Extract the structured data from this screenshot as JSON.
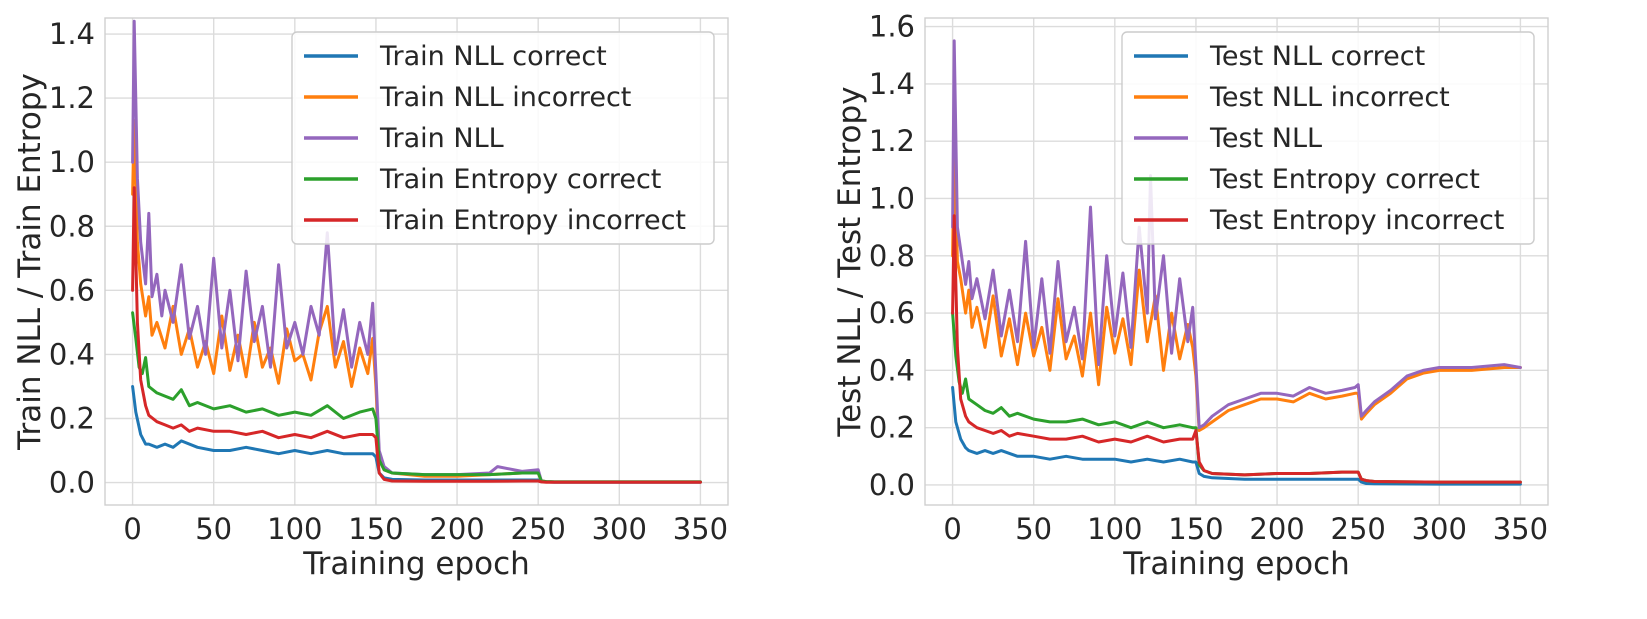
{
  "chart_data": [
    {
      "type": "line",
      "xlabel": "Training epoch",
      "ylabel": "Train NLL / Train Entropy",
      "xlim": [
        -17,
        367
      ],
      "ylim": [
        -0.07,
        1.45
      ],
      "xticks": [
        "0",
        "50",
        "100",
        "150",
        "200",
        "250",
        "300",
        "350"
      ],
      "yticks": [
        "0.0",
        "0.2",
        "0.4",
        "0.6",
        "0.8",
        "1.0",
        "1.2",
        "1.4"
      ],
      "grid": true,
      "legend_position": "top-right",
      "series": [
        {
          "name": "Train NLL correct",
          "color": "#1f77b4",
          "x": [
            0,
            2,
            5,
            8,
            10,
            15,
            20,
            25,
            30,
            40,
            50,
            60,
            70,
            80,
            90,
            100,
            110,
            120,
            130,
            140,
            148,
            150,
            152,
            155,
            160,
            180,
            200,
            220,
            240,
            250,
            252,
            255,
            260,
            300,
            350
          ],
          "y": [
            0.3,
            0.22,
            0.15,
            0.12,
            0.12,
            0.11,
            0.12,
            0.11,
            0.13,
            0.11,
            0.1,
            0.1,
            0.11,
            0.1,
            0.09,
            0.1,
            0.09,
            0.1,
            0.09,
            0.09,
            0.09,
            0.08,
            0.03,
            0.015,
            0.01,
            0.008,
            0.008,
            0.008,
            0.008,
            0.008,
            0.003,
            0.002,
            0.001,
            0.001,
            0.001
          ]
        },
        {
          "name": "Train NLL incorrect",
          "color": "#ff7f0e",
          "x": [
            0,
            1,
            3,
            5,
            8,
            10,
            12,
            15,
            20,
            25,
            30,
            35,
            40,
            45,
            50,
            55,
            60,
            65,
            70,
            75,
            80,
            85,
            90,
            95,
            100,
            105,
            110,
            115,
            120,
            125,
            130,
            135,
            140,
            145,
            148,
            150,
            152,
            155,
            160,
            180,
            200,
            220,
            240,
            250,
            252,
            255,
            260,
            300,
            350
          ],
          "y": [
            0.9,
            1.13,
            0.75,
            0.62,
            0.52,
            0.58,
            0.46,
            0.5,
            0.42,
            0.55,
            0.4,
            0.48,
            0.36,
            0.44,
            0.34,
            0.52,
            0.35,
            0.46,
            0.33,
            0.5,
            0.36,
            0.42,
            0.31,
            0.48,
            0.38,
            0.4,
            0.32,
            0.47,
            0.55,
            0.36,
            0.44,
            0.3,
            0.42,
            0.34,
            0.45,
            0.3,
            0.08,
            0.04,
            0.03,
            0.02,
            0.02,
            0.025,
            0.03,
            0.03,
            0.005,
            0.003,
            0.002,
            0.002,
            0.002
          ]
        },
        {
          "name": "Train NLL",
          "color": "#9467bd",
          "x": [
            0,
            1,
            3,
            5,
            8,
            10,
            12,
            15,
            18,
            20,
            25,
            30,
            35,
            40,
            45,
            50,
            55,
            60,
            65,
            70,
            75,
            80,
            85,
            90,
            95,
            100,
            105,
            110,
            115,
            120,
            125,
            130,
            135,
            140,
            145,
            148,
            150,
            152,
            155,
            160,
            180,
            200,
            220,
            225,
            240,
            250,
            252,
            255,
            260,
            300,
            350
          ],
          "y": [
            1.0,
            1.44,
            0.95,
            0.75,
            0.62,
            0.84,
            0.58,
            0.65,
            0.52,
            0.6,
            0.5,
            0.68,
            0.45,
            0.55,
            0.4,
            0.7,
            0.42,
            0.6,
            0.38,
            0.66,
            0.44,
            0.55,
            0.36,
            0.68,
            0.42,
            0.5,
            0.4,
            0.55,
            0.46,
            0.78,
            0.4,
            0.54,
            0.36,
            0.5,
            0.4,
            0.56,
            0.34,
            0.1,
            0.05,
            0.03,
            0.025,
            0.025,
            0.03,
            0.05,
            0.035,
            0.04,
            0.005,
            0.003,
            0.002,
            0.002,
            0.002
          ]
        },
        {
          "name": "Train Entropy correct",
          "color": "#2ca02c",
          "x": [
            0,
            2,
            4,
            6,
            8,
            10,
            15,
            20,
            25,
            30,
            35,
            40,
            50,
            60,
            70,
            80,
            90,
            100,
            110,
            120,
            130,
            140,
            148,
            150,
            152,
            155,
            160,
            180,
            200,
            220,
            240,
            250,
            252,
            255,
            260,
            300,
            350
          ],
          "y": [
            0.53,
            0.45,
            0.36,
            0.34,
            0.39,
            0.3,
            0.28,
            0.27,
            0.26,
            0.29,
            0.24,
            0.25,
            0.23,
            0.24,
            0.22,
            0.23,
            0.21,
            0.22,
            0.21,
            0.24,
            0.2,
            0.22,
            0.23,
            0.2,
            0.07,
            0.04,
            0.03,
            0.025,
            0.025,
            0.025,
            0.03,
            0.03,
            0.005,
            0.003,
            0.002,
            0.002,
            0.002
          ]
        },
        {
          "name": "Train Entropy incorrect",
          "color": "#d62728",
          "x": [
            0,
            1,
            3,
            5,
            8,
            10,
            15,
            20,
            25,
            30,
            35,
            40,
            50,
            60,
            70,
            80,
            90,
            100,
            110,
            120,
            130,
            140,
            148,
            150,
            152,
            155,
            160,
            180,
            200,
            220,
            240,
            250,
            252,
            255,
            260,
            300,
            350
          ],
          "y": [
            0.6,
            0.92,
            0.5,
            0.32,
            0.24,
            0.21,
            0.19,
            0.18,
            0.17,
            0.18,
            0.16,
            0.17,
            0.16,
            0.16,
            0.15,
            0.16,
            0.14,
            0.15,
            0.14,
            0.16,
            0.14,
            0.15,
            0.15,
            0.14,
            0.03,
            0.01,
            0.005,
            0.004,
            0.004,
            0.004,
            0.005,
            0.005,
            0.002,
            0.001,
            0.001,
            0.001,
            0.001
          ]
        }
      ]
    },
    {
      "type": "line",
      "xlabel": "Training epoch",
      "ylabel": "Test NLL / Test Entropy",
      "xlim": [
        -17,
        367
      ],
      "ylim": [
        -0.07,
        1.63
      ],
      "xticks": [
        "0",
        "50",
        "100",
        "150",
        "200",
        "250",
        "300",
        "350"
      ],
      "yticks": [
        "0.0",
        "0.2",
        "0.4",
        "0.6",
        "0.8",
        "1.0",
        "1.2",
        "1.4",
        "1.6"
      ],
      "grid": true,
      "legend_position": "top-right",
      "series": [
        {
          "name": "Test NLL correct",
          "color": "#1f77b4",
          "x": [
            0,
            2,
            5,
            8,
            10,
            15,
            20,
            25,
            30,
            40,
            50,
            60,
            70,
            80,
            90,
            100,
            110,
            120,
            130,
            140,
            148,
            150,
            152,
            155,
            160,
            180,
            200,
            220,
            240,
            250,
            252,
            255,
            260,
            300,
            350
          ],
          "y": [
            0.34,
            0.22,
            0.16,
            0.13,
            0.12,
            0.11,
            0.12,
            0.11,
            0.12,
            0.1,
            0.1,
            0.09,
            0.1,
            0.09,
            0.09,
            0.09,
            0.08,
            0.09,
            0.08,
            0.09,
            0.08,
            0.08,
            0.04,
            0.03,
            0.025,
            0.02,
            0.02,
            0.02,
            0.02,
            0.02,
            0.01,
            0.005,
            0.004,
            0.003,
            0.003
          ]
        },
        {
          "name": "Test NLL incorrect",
          "color": "#ff7f0e",
          "x": [
            0,
            1,
            3,
            5,
            8,
            10,
            12,
            15,
            20,
            25,
            30,
            35,
            40,
            45,
            50,
            55,
            60,
            65,
            70,
            75,
            80,
            85,
            90,
            95,
            100,
            105,
            110,
            115,
            120,
            125,
            130,
            135,
            140,
            145,
            148,
            150,
            152,
            155,
            160,
            170,
            180,
            190,
            200,
            210,
            220,
            230,
            240,
            248,
            250,
            252,
            255,
            260,
            270,
            280,
            290,
            300,
            320,
            340,
            350
          ],
          "y": [
            0.8,
            1.21,
            0.78,
            0.72,
            0.6,
            0.68,
            0.55,
            0.62,
            0.48,
            0.66,
            0.45,
            0.58,
            0.42,
            0.6,
            0.45,
            0.55,
            0.4,
            0.65,
            0.44,
            0.52,
            0.38,
            0.6,
            0.35,
            0.62,
            0.46,
            0.58,
            0.42,
            0.75,
            0.5,
            0.66,
            0.4,
            0.6,
            0.44,
            0.56,
            0.48,
            0.38,
            0.19,
            0.2,
            0.22,
            0.26,
            0.28,
            0.3,
            0.3,
            0.29,
            0.32,
            0.3,
            0.31,
            0.32,
            0.32,
            0.23,
            0.25,
            0.28,
            0.32,
            0.37,
            0.39,
            0.4,
            0.4,
            0.41,
            0.41
          ]
        },
        {
          "name": "Test NLL",
          "color": "#9467bd",
          "x": [
            0,
            1,
            3,
            5,
            8,
            10,
            12,
            15,
            20,
            25,
            30,
            35,
            40,
            45,
            50,
            55,
            60,
            65,
            70,
            75,
            80,
            85,
            90,
            95,
            100,
            105,
            110,
            115,
            120,
            122,
            125,
            130,
            135,
            140,
            145,
            148,
            150,
            152,
            155,
            160,
            170,
            180,
            190,
            200,
            210,
            220,
            230,
            240,
            248,
            250,
            252,
            255,
            260,
            270,
            280,
            290,
            300,
            320,
            340,
            350
          ],
          "y": [
            0.9,
            1.55,
            0.9,
            0.82,
            0.7,
            0.78,
            0.65,
            0.72,
            0.58,
            0.75,
            0.52,
            0.68,
            0.5,
            0.85,
            0.48,
            0.72,
            0.46,
            0.78,
            0.5,
            0.62,
            0.44,
            0.97,
            0.42,
            0.8,
            0.52,
            0.74,
            0.48,
            0.9,
            0.6,
            1.08,
            0.58,
            0.8,
            0.46,
            0.72,
            0.5,
            0.62,
            0.42,
            0.2,
            0.21,
            0.24,
            0.28,
            0.3,
            0.32,
            0.32,
            0.31,
            0.34,
            0.32,
            0.33,
            0.34,
            0.35,
            0.24,
            0.26,
            0.29,
            0.33,
            0.38,
            0.4,
            0.41,
            0.41,
            0.42,
            0.41
          ]
        },
        {
          "name": "Test Entropy correct",
          "color": "#2ca02c",
          "x": [
            0,
            2,
            4,
            6,
            8,
            10,
            15,
            20,
            25,
            30,
            35,
            40,
            50,
            60,
            70,
            80,
            90,
            100,
            110,
            120,
            130,
            140,
            148,
            150,
            152,
            155,
            160,
            180,
            200,
            220,
            240,
            250,
            252,
            255,
            260,
            300,
            350
          ],
          "y": [
            0.6,
            0.45,
            0.36,
            0.32,
            0.37,
            0.3,
            0.28,
            0.26,
            0.25,
            0.27,
            0.24,
            0.25,
            0.23,
            0.22,
            0.22,
            0.23,
            0.21,
            0.22,
            0.2,
            0.22,
            0.2,
            0.21,
            0.2,
            0.2,
            0.07,
            0.05,
            0.04,
            0.035,
            0.04,
            0.04,
            0.045,
            0.045,
            0.02,
            0.015,
            0.012,
            0.01,
            0.01
          ]
        },
        {
          "name": "Test Entropy incorrect",
          "color": "#d62728",
          "x": [
            0,
            1,
            3,
            5,
            8,
            10,
            15,
            20,
            25,
            30,
            35,
            40,
            50,
            60,
            70,
            80,
            90,
            100,
            110,
            120,
            130,
            140,
            148,
            150,
            152,
            155,
            160,
            180,
            200,
            220,
            240,
            250,
            252,
            255,
            260,
            300,
            350
          ],
          "y": [
            0.6,
            0.94,
            0.48,
            0.3,
            0.24,
            0.22,
            0.2,
            0.19,
            0.18,
            0.19,
            0.17,
            0.18,
            0.17,
            0.16,
            0.16,
            0.17,
            0.15,
            0.16,
            0.15,
            0.17,
            0.15,
            0.16,
            0.16,
            0.19,
            0.08,
            0.05,
            0.04,
            0.035,
            0.04,
            0.04,
            0.045,
            0.045,
            0.02,
            0.015,
            0.012,
            0.01,
            0.01
          ]
        }
      ]
    }
  ]
}
